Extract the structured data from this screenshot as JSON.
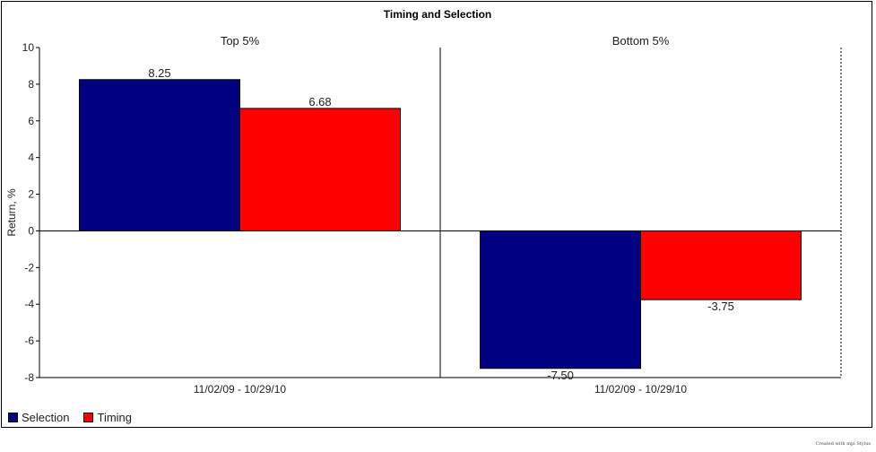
{
  "chart_data": {
    "type": "bar",
    "title": "Timing and Selection",
    "ylabel": "Return, %",
    "ylim": [
      -8,
      10
    ],
    "yticks": [
      10,
      8,
      6,
      4,
      2,
      0,
      -2,
      -4,
      -6,
      -8
    ],
    "legend_position": "bottom-left",
    "series": [
      {
        "name": "Selection",
        "color": "#000080"
      },
      {
        "name": "Timing",
        "color": "#ff0000"
      }
    ],
    "panels": [
      {
        "title": "Top 5%",
        "category": "11/02/09 - 10/29/10",
        "values": [
          8.25,
          6.68
        ],
        "labels": [
          "8.25",
          "6.68"
        ]
      },
      {
        "title": "Bottom 5%",
        "category": "11/02/09 - 10/29/10",
        "values": [
          -7.5,
          -3.75
        ],
        "labels": [
          "-7.50",
          "-3.75"
        ]
      }
    ]
  },
  "footer": "Created with mpi Stylus"
}
